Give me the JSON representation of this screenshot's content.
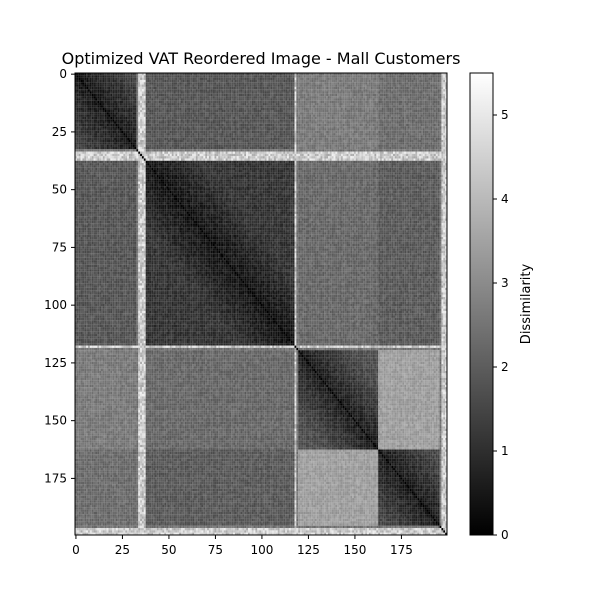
{
  "chart_data": {
    "type": "heatmap",
    "title": "Optimized VAT Reordered Image - Mall Customers",
    "size": 200,
    "colormap": "gray",
    "xlim": [
      0,
      199
    ],
    "ylim": [
      0,
      199
    ],
    "x_ticks": [
      0,
      25,
      50,
      75,
      100,
      125,
      150,
      175
    ],
    "y_ticks": [
      0,
      25,
      50,
      75,
      100,
      125,
      150,
      175
    ],
    "colorbar": {
      "label": "Dissimilarity",
      "range": [
        0,
        5.5
      ],
      "ticks": [
        0,
        1,
        2,
        3,
        4,
        5
      ]
    },
    "blocks": [
      {
        "start": 0,
        "end": 33,
        "within": 1.2
      },
      {
        "start": 38,
        "end": 118,
        "within": 0.9
      },
      {
        "start": 120,
        "end": 163,
        "within": 1.4
      },
      {
        "start": 163,
        "end": 196,
        "within": 1.3
      }
    ],
    "between_blocks": [
      [
        null,
        1.8,
        2.6,
        2.3
      ],
      [
        1.8,
        null,
        2.2,
        1.9
      ],
      [
        2.6,
        2.2,
        null,
        3.4
      ],
      [
        2.3,
        1.9,
        3.4,
        null
      ]
    ],
    "outlier_indices": [
      34,
      35,
      36,
      37,
      118,
      197,
      198,
      199
    ]
  }
}
